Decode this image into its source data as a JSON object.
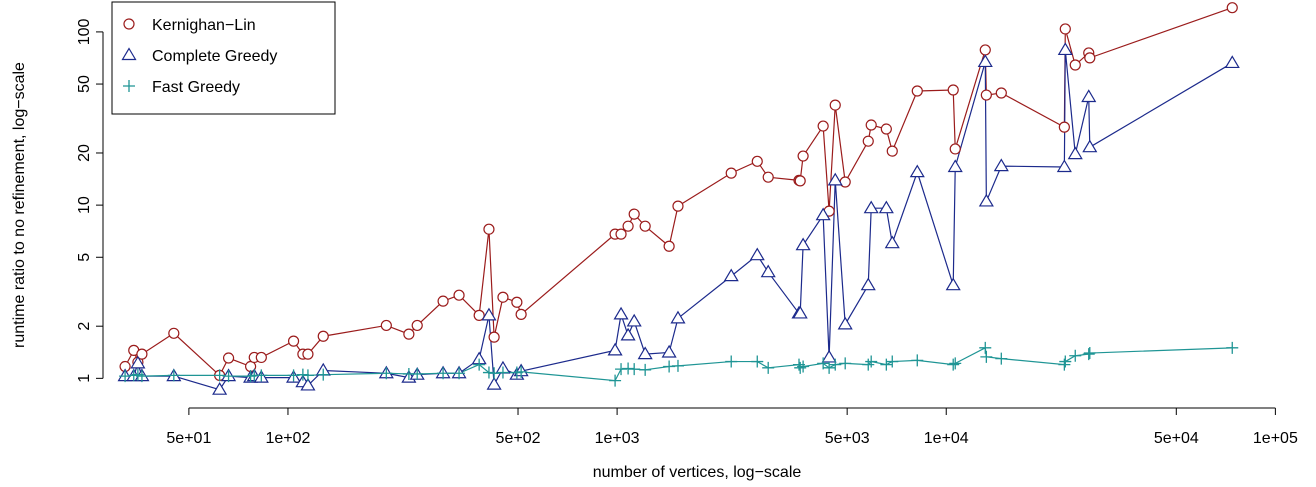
{
  "chart_data": {
    "type": "line",
    "x_label": "number of vertices, log−scale",
    "y_label": "runtime ratio to no refinement, log−scale",
    "x": [
      32,
      34,
      35,
      36,
      45,
      62,
      66,
      77,
      79,
      83,
      104,
      111,
      115,
      128,
      199,
      233,
      247,
      296,
      331,
      381,
      408,
      423,
      450,
      496,
      511,
      986,
      1028,
      1080,
      1127,
      1217,
      1439,
      1531,
      2222,
      2666,
      2878,
      3570,
      3600,
      3674,
      4227,
      4407,
      4600,
      4932,
      5795,
      5916,
      6577,
      6855,
      8166,
      10500,
      10650,
      13140,
      13240,
      14700,
      22850,
      23000,
      24660,
      27100,
      27300,
      73960
    ],
    "series": [
      {
        "name": "Kernighan−Lin",
        "color": "#9b1c1c",
        "marker": "circle",
        "values": [
          1.17,
          1.45,
          1.24,
          1.38,
          1.82,
          1.04,
          1.31,
          1.17,
          1.32,
          1.32,
          1.64,
          1.38,
          1.38,
          1.75,
          2.02,
          1.8,
          2.02,
          2.79,
          3.02,
          2.31,
          7.26,
          1.73,
          2.94,
          2.75,
          2.34,
          6.8,
          6.8,
          7.56,
          8.87,
          7.56,
          5.79,
          9.87,
          15.3,
          17.9,
          14.5,
          13.9,
          13.8,
          19.2,
          28.6,
          9.23,
          37.8,
          13.6,
          23.4,
          29.0,
          27.5,
          20.5,
          45.6,
          46.2,
          21.1,
          78.7,
          43.2,
          44.4,
          28.2,
          104,
          64.4,
          75.6,
          70.8,
          138
        ]
      },
      {
        "name": "Complete Greedy",
        "color": "#1c2a8c",
        "marker": "triangle",
        "values": [
          1.03,
          1.03,
          1.22,
          1.03,
          1.03,
          0.86,
          1.03,
          1.01,
          1.03,
          1.01,
          1.01,
          0.95,
          0.91,
          1.11,
          1.07,
          1.01,
          1.05,
          1.07,
          1.07,
          1.29,
          2.31,
          0.92,
          1.14,
          1.05,
          1.1,
          1.45,
          2.34,
          1.77,
          2.13,
          1.38,
          1.41,
          2.22,
          3.89,
          5.14,
          4.1,
          2.37,
          2.37,
          5.87,
          8.75,
          1.32,
          13.9,
          2.05,
          3.45,
          9.6,
          9.6,
          6.03,
          15.5,
          3.45,
          16.6,
          67.1,
          10.5,
          16.8,
          16.6,
          78.7,
          19.7,
          42.1,
          21.6,
          66.2
        ]
      },
      {
        "name": "Fast Greedy",
        "color": "#1f9595",
        "marker": "plus",
        "values": [
          1.03,
          1.04,
          1.05,
          1.03,
          1.04,
          1.04,
          1.03,
          1.03,
          1.04,
          1.04,
          1.04,
          1.05,
          1.04,
          1.05,
          1.07,
          1.06,
          1.06,
          1.07,
          1.07,
          1.2,
          1.08,
          1.07,
          1.08,
          1.08,
          1.09,
          0.97,
          1.13,
          1.14,
          1.13,
          1.12,
          1.17,
          1.18,
          1.25,
          1.25,
          1.15,
          1.2,
          1.15,
          1.17,
          1.22,
          1.15,
          1.2,
          1.22,
          1.2,
          1.25,
          1.2,
          1.25,
          1.27,
          1.2,
          1.22,
          1.5,
          1.33,
          1.3,
          1.2,
          1.25,
          1.35,
          1.38,
          1.4,
          1.5
        ]
      }
    ],
    "log_x": true,
    "log_y": true,
    "xlim": [
      28,
      110000
    ],
    "ylim": [
      0.77,
      143
    ],
    "xticks": [
      {
        "value": 50,
        "label": "5e+01"
      },
      {
        "value": 100,
        "label": "1e+02"
      },
      {
        "value": 500,
        "label": "5e+02"
      },
      {
        "value": 1000,
        "label": "1e+03"
      },
      {
        "value": 5000,
        "label": "5e+03"
      },
      {
        "value": 10000,
        "label": "1e+04"
      },
      {
        "value": 50000,
        "label": "5e+04"
      },
      {
        "value": 100000,
        "label": "1e+05"
      }
    ],
    "yticks": [
      1,
      2,
      5,
      10,
      20,
      50,
      100
    ],
    "grid": false,
    "legend": "top-left"
  }
}
